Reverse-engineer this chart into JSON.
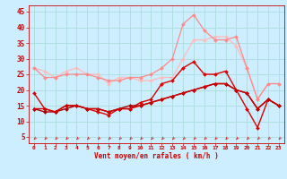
{
  "background_color": "#cceeff",
  "grid_color": "#aadddd",
  "line_color_dark": "#cc0000",
  "xlabel": "Vent moyen/en rafales ( km/h )",
  "xlabel_color": "#cc0000",
  "ylabel_ticks": [
    5,
    10,
    15,
    20,
    25,
    30,
    35,
    40,
    45
  ],
  "xlim": [
    -0.5,
    23.5
  ],
  "ylim": [
    3,
    47
  ],
  "series": [
    {
      "x": [
        0,
        1,
        2,
        3,
        4,
        5,
        6,
        7,
        8,
        9,
        10,
        11,
        12,
        13,
        14,
        15,
        16,
        17,
        18,
        19,
        20,
        21,
        22,
        23
      ],
      "y": [
        27,
        26,
        24,
        26,
        27,
        25,
        25,
        22,
        24,
        24,
        23,
        23,
        24,
        24,
        30,
        36,
        36,
        37,
        37,
        34,
        27,
        17,
        22,
        22
      ],
      "color": "#ffbbbb",
      "lw": 0.9,
      "marker": "D",
      "ms": 2.0
    },
    {
      "x": [
        0,
        1,
        2,
        3,
        4,
        5,
        6,
        7,
        8,
        9,
        10,
        11,
        12,
        13,
        14,
        15,
        16,
        17,
        18,
        19,
        20,
        21,
        22,
        23
      ],
      "y": [
        27,
        24,
        24,
        25,
        25,
        25,
        24,
        23,
        23,
        24,
        24,
        25,
        27,
        30,
        41,
        44,
        39,
        36,
        36,
        37,
        27,
        17,
        22,
        22
      ],
      "color": "#ff8888",
      "lw": 0.9,
      "marker": "D",
      "ms": 2.0
    },
    {
      "x": [
        0,
        1,
        2,
        3,
        4,
        5,
        6,
        7,
        8,
        9,
        10,
        11,
        12,
        13,
        14,
        15,
        16,
        17,
        18,
        19,
        20,
        21,
        22,
        23
      ],
      "y": [
        19,
        14,
        13,
        15,
        15,
        14,
        13,
        12,
        14,
        14,
        16,
        17,
        22,
        23,
        27,
        29,
        25,
        25,
        26,
        20,
        14,
        8,
        17,
        15
      ],
      "color": "#dd0000",
      "lw": 1.0,
      "marker": "D",
      "ms": 2.0
    },
    {
      "x": [
        0,
        1,
        2,
        3,
        4,
        5,
        6,
        7,
        8,
        9,
        10,
        11,
        12,
        13,
        14,
        15,
        16,
        17,
        18,
        19,
        20,
        21,
        22,
        23
      ],
      "y": [
        14,
        13,
        13,
        14,
        15,
        14,
        14,
        13,
        14,
        15,
        15,
        16,
        17,
        18,
        19,
        20,
        21,
        22,
        22,
        20,
        19,
        14,
        17,
        15
      ],
      "color": "#aa0000",
      "lw": 1.0,
      "marker": "D",
      "ms": 2.0
    },
    {
      "x": [
        0,
        1,
        2,
        3,
        4,
        5,
        6,
        7,
        8,
        9,
        10,
        11,
        12,
        13,
        14,
        15,
        16,
        17,
        18,
        19,
        20,
        21,
        22,
        23
      ],
      "y": [
        14,
        14,
        13,
        15,
        15,
        14,
        14,
        13,
        14,
        14,
        15,
        16,
        17,
        18,
        19,
        20,
        21,
        22,
        22,
        20,
        19,
        14,
        17,
        15
      ],
      "color": "#cc0000",
      "lw": 1.0,
      "marker": "D",
      "ms": 2.0
    }
  ],
  "xtick_labels": [
    "0",
    "1",
    "2",
    "3",
    "4",
    "5",
    "6",
    "7",
    "8",
    "9",
    "10",
    "11",
    "12",
    "13",
    "14",
    "15",
    "16",
    "17",
    "18",
    "19",
    "20",
    "21",
    "22",
    "23"
  ]
}
